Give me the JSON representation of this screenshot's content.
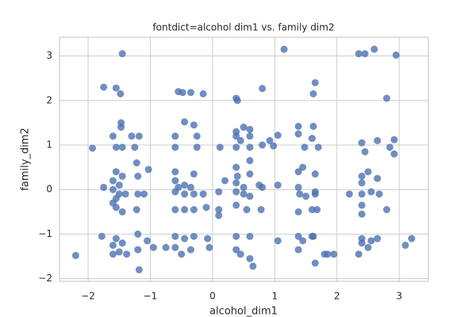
{
  "chart_data": {
    "type": "scatter",
    "title": "fontdict=alcohol dim1 vs. family dim2",
    "x_label": "alcohol_dim1",
    "y_label": "family_dim2",
    "color": "#4c72b0",
    "grid": true,
    "xlim": [
      -2.46,
      3.47
    ],
    "ylim": [
      -2.06,
      3.42
    ],
    "xticks": [
      {
        "value": -2,
        "label": "−2"
      },
      {
        "value": -1,
        "label": "−1"
      },
      0,
      1,
      2,
      3
    ],
    "yticks": [
      {
        "value": -2,
        "label": "−2"
      },
      {
        "value": -1,
        "label": "−1"
      },
      0,
      1,
      2,
      3
    ],
    "x": [
      -1.45,
      -1.75,
      -1.55,
      -1.48,
      -1.47,
      -1.47,
      -1.6,
      -1.3,
      -1.18,
      -1.55,
      -1.45,
      -1.25,
      -1.22,
      -1.55,
      -1.45,
      -1.2,
      -1.6,
      -1.5,
      -1.75,
      -1.6,
      -1.5,
      -1.4,
      -1.2,
      -1.1,
      -1.55,
      -1.6,
      -1.55,
      -1.45,
      -1.22,
      -1.78,
      -1.2,
      -1.55,
      -1.45,
      -1.6,
      -1.5,
      -1.6,
      -1.38,
      -1.2,
      -1.18,
      -2.2,
      -1.93,
      -1.03,
      -0.95,
      -1.05,
      -0.55,
      -0.48,
      -0.35,
      -0.15,
      -0.45,
      -0.3,
      -0.6,
      -0.25,
      -0.6,
      -0.25,
      -0.6,
      -0.3,
      -0.6,
      -0.45,
      -0.55,
      -0.35,
      -0.6,
      -0.45,
      -0.3,
      -0.15,
      -0.6,
      -0.45,
      -0.3,
      -0.1,
      -0.6,
      -0.45,
      -0.3,
      -0.08,
      -0.6,
      -0.5,
      -0.35,
      -0.05,
      0.2,
      0.1,
      0.1,
      0.1,
      0.12,
      -0.75,
      0.38,
      0.4,
      0.8,
      0.5,
      0.38,
      0.6,
      0.38,
      0.45,
      0.6,
      0.8,
      0.38,
      0.6,
      0.98,
      0.38,
      0.4,
      0.6,
      0.6,
      0.38,
      0.5,
      0.38,
      0.5,
      0.6,
      0.75,
      0.8,
      1.05,
      0.38,
      0.55,
      0.78,
      0.38,
      0.6,
      0.38,
      0.45,
      0.6,
      0.65,
      1.05,
      0.92,
      1.05,
      1.15,
      1.65,
      1.62,
      1.38,
      1.38,
      1.62,
      1.6,
      1.7,
      1.48,
      1.38,
      1.45,
      1.65,
      1.38,
      1.5,
      1.4,
      1.65,
      1.65,
      1.38,
      1.6,
      1.68,
      1.38,
      1.45,
      1.6,
      1.38,
      1.65,
      1.8,
      1.95,
      1.85,
      1.62,
      2.35,
      2.45,
      2.6,
      2.95,
      2.8,
      2.4,
      2.45,
      2.85,
      2.92,
      2.92,
      2.65,
      2.4,
      2.5,
      2.4,
      2.65,
      2.4,
      2.2,
      2.55,
      2.68,
      2.4,
      2.4,
      2.8,
      2.4,
      2.4,
      2.55,
      2.65,
      2.35,
      2.5,
      3.1,
      3.2
    ],
    "values": [
      3.05,
      2.3,
      2.28,
      2.15,
      1.5,
      1.4,
      1.2,
      1.2,
      1.2,
      0.95,
      0.95,
      0.95,
      0.6,
      0.4,
      0.3,
      0.3,
      0.2,
      0.1,
      0.05,
      0.0,
      -0.1,
      -0.1,
      -0.1,
      -0.1,
      -0.2,
      -0.3,
      -0.4,
      -0.5,
      -0.45,
      -1.05,
      -1.0,
      -1.1,
      -1.2,
      -1.25,
      -1.4,
      -1.45,
      -1.45,
      -1.35,
      -1.8,
      -1.48,
      0.93,
      0.45,
      -1.3,
      -1.15,
      2.2,
      2.18,
      2.18,
      2.15,
      1.52,
      1.45,
      1.2,
      1.2,
      0.95,
      0.95,
      0.4,
      0.35,
      0.2,
      0.1,
      0.05,
      0.05,
      -0.05,
      -0.1,
      -0.1,
      -0.1,
      -0.45,
      -0.45,
      -0.45,
      -0.4,
      -1.05,
      -1.1,
      -1.05,
      -1.1,
      -1.3,
      -1.45,
      -1.35,
      -1.3,
      0.2,
      -0.05,
      -0.45,
      -0.58,
      0.95,
      -1.3,
      2.05,
      2.0,
      2.27,
      1.4,
      1.3,
      1.35,
      1.2,
      1.1,
      1.2,
      1.0,
      0.95,
      0.95,
      0.98,
      0.5,
      0.3,
      0.35,
      0.65,
      0.15,
      0.05,
      -0.05,
      -0.1,
      -0.15,
      0.1,
      0.05,
      0.1,
      -0.35,
      -0.45,
      -0.45,
      -1.05,
      -1.05,
      -1.35,
      -1.45,
      -1.55,
      -1.72,
      -1.15,
      1.1,
      1.22,
      3.15,
      2.4,
      2.15,
      1.42,
      1.25,
      1.42,
      1.15,
      0.95,
      0.95,
      0.4,
      0.5,
      0.35,
      0.05,
      -0.15,
      -0.1,
      -0.05,
      -0.1,
      -0.5,
      -0.45,
      -0.45,
      -1.05,
      -1.15,
      -1.05,
      -1.35,
      -1.65,
      -1.45,
      -1.45,
      -1.45,
      -1.05,
      3.05,
      3.05,
      3.15,
      3.02,
      2.05,
      1.05,
      0.85,
      0.95,
      1.12,
      0.8,
      1.1,
      0.3,
      0.4,
      0.15,
      0.25,
      -0.1,
      -0.1,
      -0.05,
      -0.1,
      -0.35,
      -0.55,
      -0.45,
      -1.1,
      -1.2,
      -1.15,
      -1.1,
      -1.45,
      -1.3,
      -1.25,
      -1.1
    ]
  }
}
